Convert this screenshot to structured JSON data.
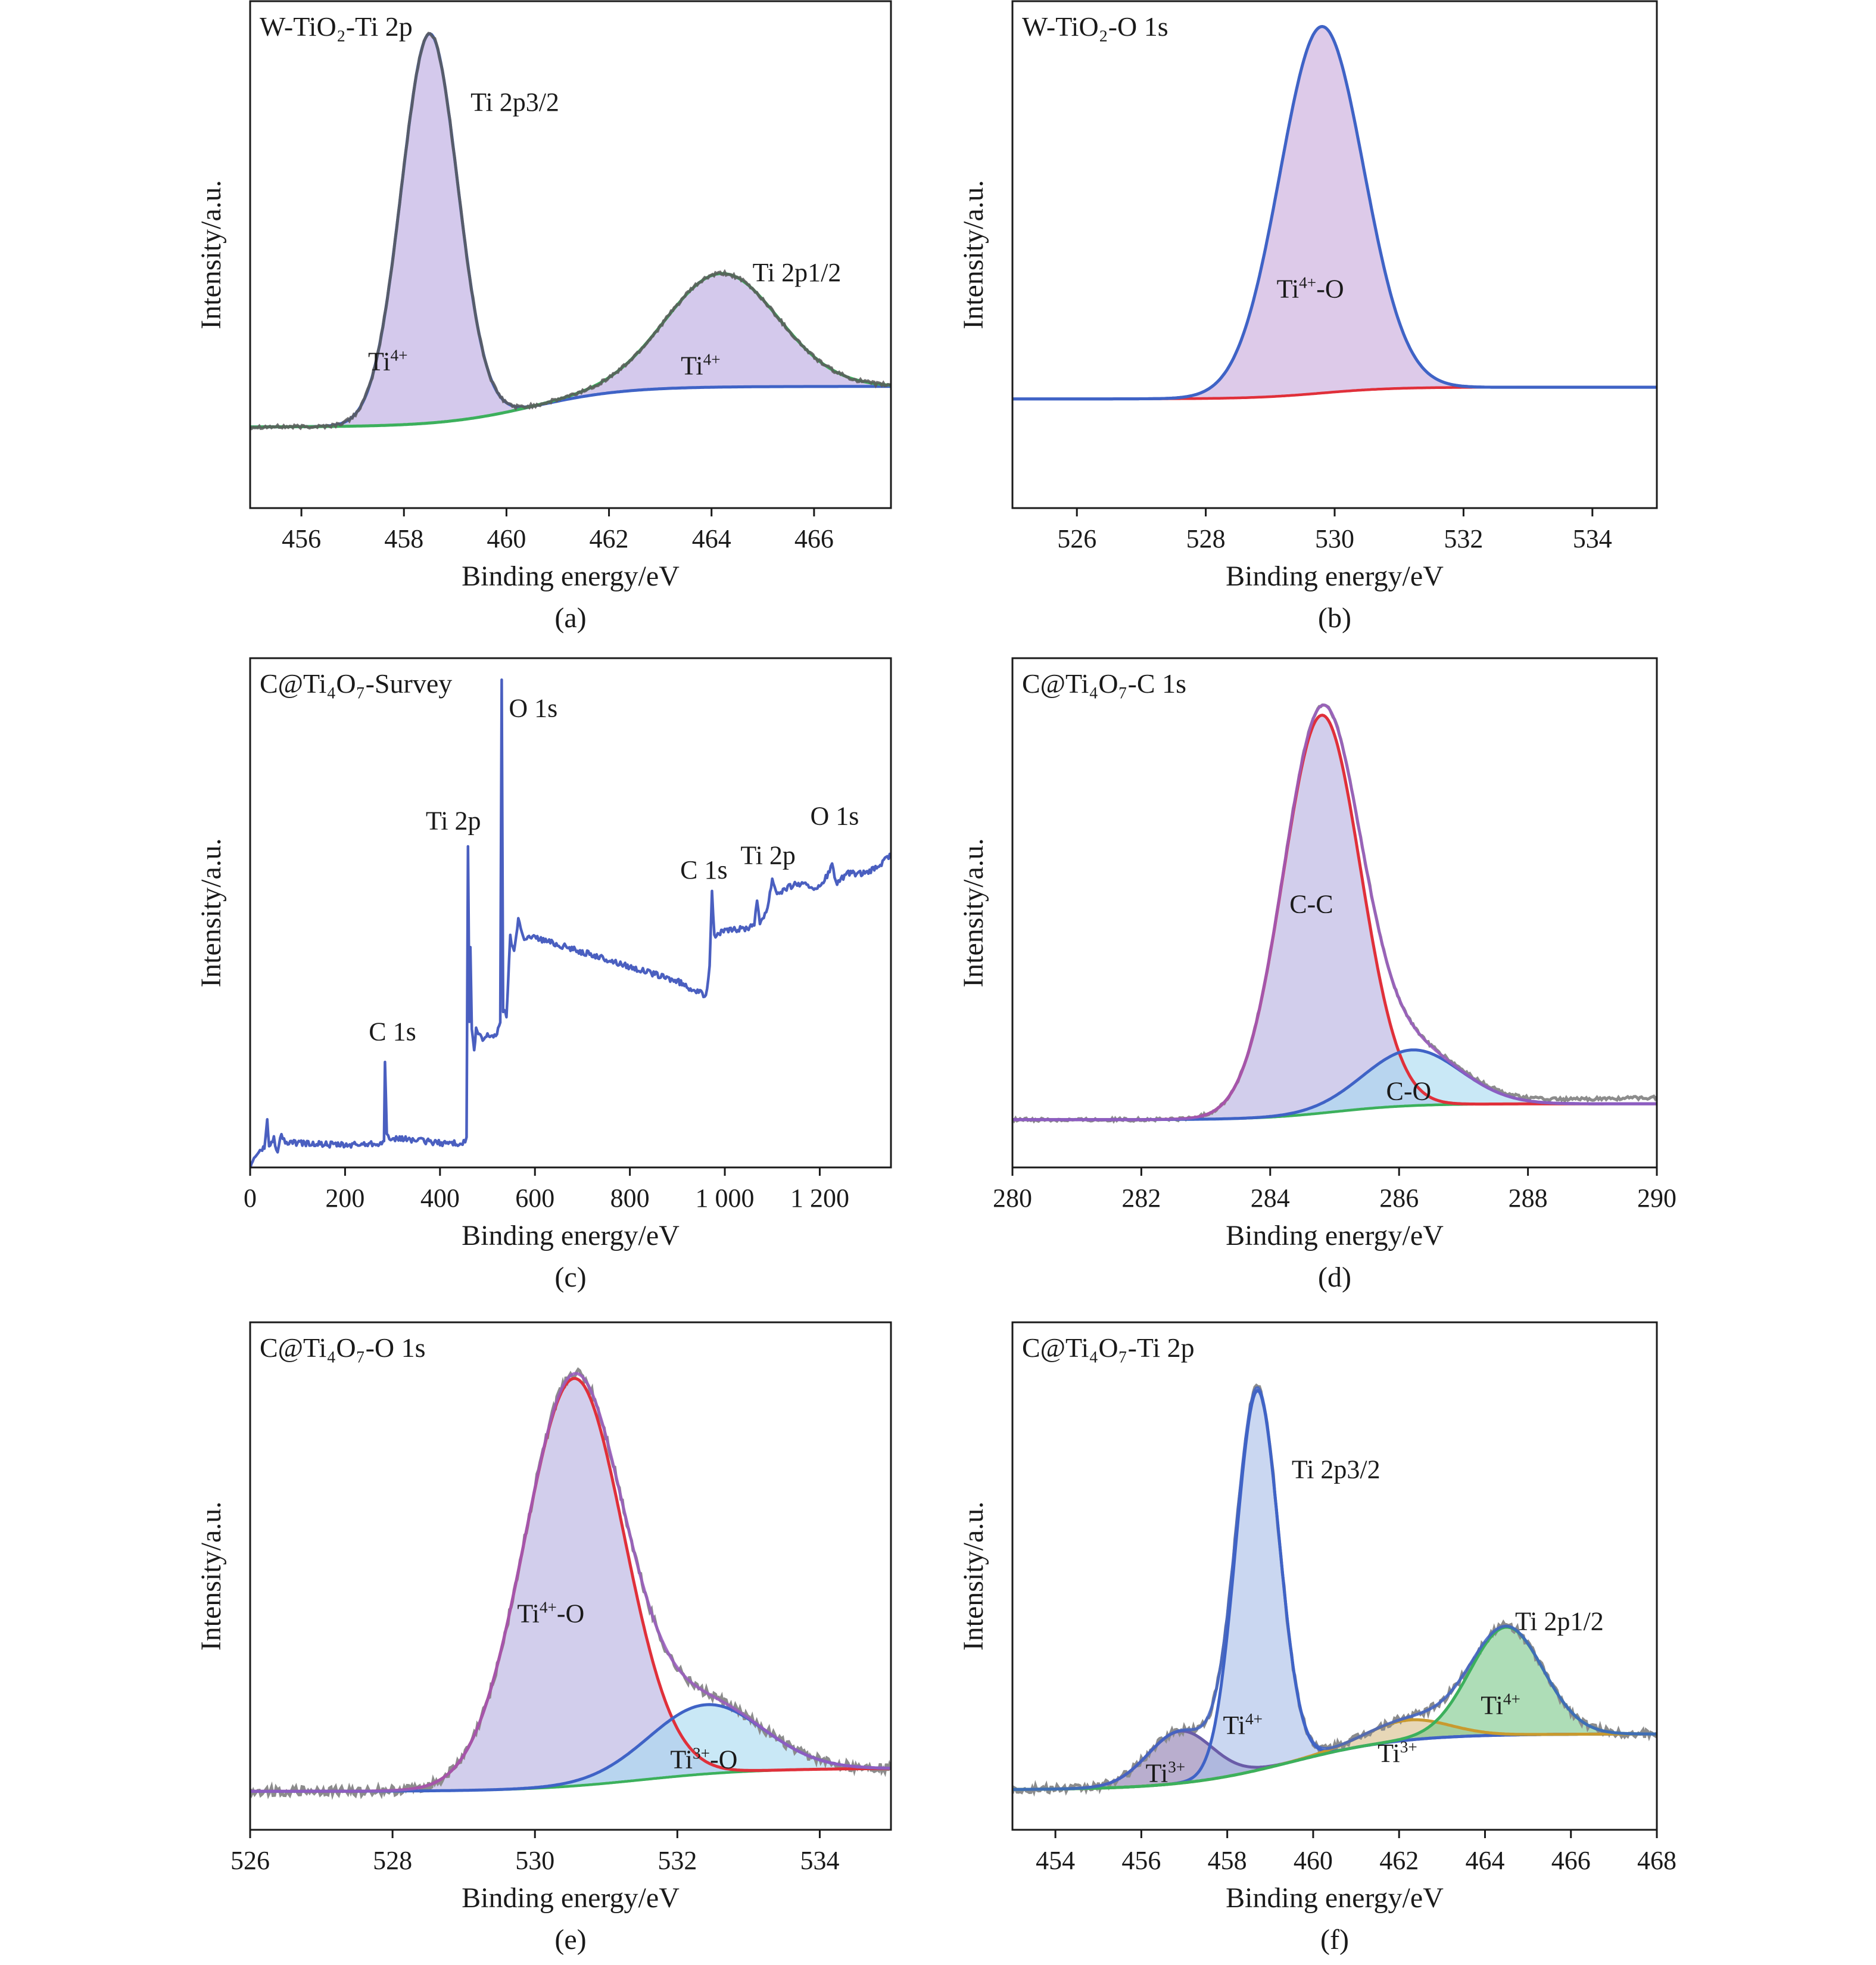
{
  "figure": {
    "background": "#ffffff"
  },
  "chart_data": [
    {
      "id": "a",
      "type": "line",
      "caption": "(a)",
      "title": "W-TiO₂-Ti 2p",
      "xlabel": "Binding energy/eV",
      "ylabel": "Intensity/a.u.",
      "xlim": [
        455,
        467.5
      ],
      "ylim": [
        -0.2,
        1.05
      ],
      "xticks": [
        456,
        458,
        460,
        462,
        464,
        466
      ],
      "baseline": {
        "color": "#9a5cbf",
        "y0": 0.0,
        "y1": 0.1,
        "center": 460.5,
        "width": 0.9
      },
      "components": [
        {
          "name": "Ti 2p3/2",
          "center": 458.5,
          "amplitude": 0.96,
          "sigma": 0.55,
          "color": "#3f63c6",
          "fill": "#b9a8e0"
        },
        {
          "name": "Ti 2p1/2",
          "center": 464.2,
          "amplitude": 0.28,
          "sigma": 1.1,
          "color": "#3cb05c",
          "fill": "#b9a8e0"
        }
      ],
      "envelope": {
        "color": "#5a5a5a",
        "noise": 0.004
      },
      "annotations": [
        {
          "text": "Ti 2p3/2",
          "x": 459.3,
          "y": 0.78
        },
        {
          "text": "Ti 2p1/2",
          "x": 464.8,
          "y": 0.36
        },
        {
          "text": "Ti",
          "sup": "4+",
          "x": 457.3,
          "y": 0.14
        },
        {
          "text": "Ti",
          "sup": "4+",
          "x": 463.4,
          "y": 0.13
        }
      ]
    },
    {
      "id": "b",
      "type": "line",
      "caption": "(b)",
      "title": "W-TiO₂-O 1s",
      "xlabel": "Binding energy/eV",
      "ylabel": "Intensity/a.u.",
      "xlim": [
        525,
        535
      ],
      "ylim": [
        -0.28,
        1.02
      ],
      "xticks": [
        526,
        528,
        530,
        532,
        534
      ],
      "baseline": {
        "color": "#e0303a",
        "y0": 0.0,
        "y1": 0.03,
        "center": 529.8,
        "width": 0.55
      },
      "components": [
        {
          "name": "Ti4+-O",
          "center": 529.8,
          "amplitude": 0.94,
          "sigma": 0.65,
          "color": "#3f63c6",
          "fill": "#c8a9dc"
        }
      ],
      "envelope": {
        "color": "#3f63c6",
        "noise": 0.0
      },
      "annotations": [
        {
          "text": "Ti",
          "sup": "4+",
          "tail": "-O",
          "x": 529.1,
          "y": 0.26
        }
      ]
    },
    {
      "id": "c",
      "type": "line",
      "caption": "(c)",
      "title": "C@Ti₄O₇-Survey",
      "xlabel": "Binding energy/eV",
      "ylabel": "Intensity/a.u.",
      "xlim": [
        0,
        1350
      ],
      "ylim": [
        0,
        1.04
      ],
      "xticks": [
        0,
        200,
        400,
        600,
        800,
        1000,
        1200
      ],
      "xticklabels": [
        "0",
        "200",
        "400",
        "600",
        "800",
        "1 000",
        "1 200"
      ],
      "series_color": "#4a5fc0",
      "points": [
        [
          0,
          0.0
        ],
        [
          8,
          0.02
        ],
        [
          16,
          0.03
        ],
        [
          30,
          0.04
        ],
        [
          36,
          0.1
        ],
        [
          40,
          0.04
        ],
        [
          50,
          0.06
        ],
        [
          58,
          0.03
        ],
        [
          66,
          0.07
        ],
        [
          74,
          0.05
        ],
        [
          100,
          0.05
        ],
        [
          200,
          0.045
        ],
        [
          270,
          0.05
        ],
        [
          282,
          0.05
        ],
        [
          284,
          0.22
        ],
        [
          288,
          0.07
        ],
        [
          296,
          0.05
        ],
        [
          310,
          0.06
        ],
        [
          400,
          0.05
        ],
        [
          450,
          0.05
        ],
        [
          456,
          0.06
        ],
        [
          459,
          0.66
        ],
        [
          462,
          0.3
        ],
        [
          464,
          0.45
        ],
        [
          467,
          0.28
        ],
        [
          472,
          0.24
        ],
        [
          476,
          0.28
        ],
        [
          490,
          0.26
        ],
        [
          500,
          0.27
        ],
        [
          520,
          0.27
        ],
        [
          527,
          0.3
        ],
        [
          530,
          1.0
        ],
        [
          533,
          0.32
        ],
        [
          540,
          0.31
        ],
        [
          548,
          0.47
        ],
        [
          556,
          0.44
        ],
        [
          565,
          0.51
        ],
        [
          575,
          0.47
        ],
        [
          600,
          0.47
        ],
        [
          700,
          0.44
        ],
        [
          800,
          0.41
        ],
        [
          900,
          0.38
        ],
        [
          960,
          0.35
        ],
        [
          968,
          0.41
        ],
        [
          973,
          0.57
        ],
        [
          978,
          0.47
        ],
        [
          990,
          0.48
        ],
        [
          1050,
          0.49
        ],
        [
          1062,
          0.5
        ],
        [
          1068,
          0.54
        ],
        [
          1074,
          0.5
        ],
        [
          1090,
          0.53
        ],
        [
          1100,
          0.59
        ],
        [
          1110,
          0.56
        ],
        [
          1150,
          0.58
        ],
        [
          1200,
          0.57
        ],
        [
          1218,
          0.6
        ],
        [
          1226,
          0.62
        ],
        [
          1234,
          0.58
        ],
        [
          1260,
          0.6
        ],
        [
          1300,
          0.6
        ],
        [
          1330,
          0.62
        ],
        [
          1350,
          0.64
        ]
      ],
      "annotations": [
        {
          "text": "C 1s",
          "x": 250,
          "y": 0.26
        },
        {
          "text": "Ti 2p",
          "x": 370,
          "y": 0.69
        },
        {
          "text": "O 1s",
          "x": 545,
          "y": 0.92
        },
        {
          "text": "C 1s",
          "x": 906,
          "y": 0.59
        },
        {
          "text": "Ti 2p",
          "x": 1033,
          "y": 0.62
        },
        {
          "text": "O 1s",
          "x": 1180,
          "y": 0.7
        }
      ]
    },
    {
      "id": "d",
      "type": "line",
      "caption": "(d)",
      "title": "C@Ti₄O₇-C 1s",
      "xlabel": "Binding energy/eV",
      "ylabel": "Intensity/a.u.",
      "xlim": [
        280,
        290
      ],
      "ylim": [
        -0.12,
        1.16
      ],
      "xticks": [
        280,
        282,
        284,
        286,
        288,
        290
      ],
      "baseline": {
        "color": "#3cb05c",
        "y0": 0.0,
        "y1": 0.04,
        "center": 285.0,
        "width": 0.6
      },
      "components": [
        {
          "name": "C-C",
          "center": 284.8,
          "amplitude": 1.0,
          "sigma": 0.6,
          "color": "#e0303a",
          "fill": "#b7b0e0"
        },
        {
          "name": "C-O",
          "center": 286.2,
          "amplitude": 0.14,
          "sigma": 0.75,
          "color": "#3f63c6",
          "fill": "#a8daf0"
        }
      ],
      "envelope": {
        "color": "#9a5cbf",
        "noise": 0.0
      },
      "rawdata": {
        "color": "#8c8c8c",
        "noise": 0.004,
        "tail": 0.04
      },
      "annotations": [
        {
          "text": "C-C",
          "x": 284.3,
          "y": 0.52
        },
        {
          "text": "C-O",
          "x": 285.8,
          "y": 0.05
        }
      ]
    },
    {
      "id": "e",
      "type": "line",
      "caption": "(e)",
      "title": "C@Ti₄O₇-O 1s",
      "xlabel": "Binding energy/eV",
      "ylabel": "Intensity/a.u.",
      "xlim": [
        526,
        535
      ],
      "ylim": [
        -0.1,
        1.22
      ],
      "xticks": [
        526,
        528,
        530,
        532,
        534
      ],
      "baseline": {
        "color": "#3cb05c",
        "y0": 0.0,
        "y1": 0.06,
        "center": 531.5,
        "width": 0.8
      },
      "components": [
        {
          "name": "Ti4+-O",
          "center": 530.55,
          "amplitude": 1.06,
          "sigma": 0.7,
          "color": "#e0303a",
          "fill": "#b7b0e0"
        },
        {
          "name": "Ti3+-O",
          "center": 532.4,
          "amplitude": 0.18,
          "sigma": 0.8,
          "color": "#3f63c6",
          "fill": "#a8daf0"
        }
      ],
      "envelope": {
        "color": "#9a5cbf",
        "noise": 0.0
      },
      "rawdata": {
        "color": "#8c8c8c",
        "noise": 0.012,
        "tail": 0.0
      },
      "annotations": [
        {
          "text": "Ti",
          "sup": "4+",
          "tail": "-O",
          "x": 529.75,
          "y": 0.44
        },
        {
          "text": "Ti",
          "sup": "3+",
          "tail": "-O",
          "x": 531.9,
          "y": 0.06
        }
      ]
    },
    {
      "id": "f",
      "type": "line",
      "caption": "(f)",
      "title": "C@Ti₄O₇-Ti 2p",
      "xlabel": "Binding energy/eV",
      "ylabel": "Intensity/a.u.",
      "xlim": [
        453,
        468
      ],
      "ylim": [
        -0.1,
        1.17
      ],
      "xticks": [
        454,
        456,
        458,
        460,
        462,
        464,
        466,
        468
      ],
      "baseline": {
        "color": "#4fb9b4",
        "y0": 0.0,
        "y1": 0.14,
        "center": 459.5,
        "width": 1.3
      },
      "components": [
        {
          "name": "Ti3+ (2p3/2)",
          "center": 456.9,
          "amplitude": 0.13,
          "sigma": 0.75,
          "color": "#6a5ca8",
          "fill": "#8e7cb0"
        },
        {
          "name": "Ti4+ (2p3/2)",
          "center": 458.7,
          "amplitude": 0.95,
          "sigma": 0.5,
          "color": "#3f63c6",
          "fill": "#a9bfe8"
        },
        {
          "name": "Ti3+ (2p1/2)",
          "center": 462.2,
          "amplitude": 0.05,
          "sigma": 0.95,
          "color": "#c99a2e",
          "fill": "#d8bf8a"
        },
        {
          "name": "Ti4+ (2p1/2)",
          "center": 464.5,
          "amplitude": 0.27,
          "sigma": 0.85,
          "color": "#3cb05c",
          "fill": "#7cc88a"
        }
      ],
      "envelope": {
        "color": "#3f63c6",
        "noise": 0.0
      },
      "rawdata": {
        "color": "#8c8c8c",
        "noise": 0.01,
        "tail": 0.0
      },
      "annotations": [
        {
          "text": "Ti 2p3/2",
          "x": 459.5,
          "y": 0.78
        },
        {
          "text": "Ti 2p1/2",
          "x": 464.7,
          "y": 0.4
        },
        {
          "text": "Ti",
          "sup": "4+",
          "x": 457.9,
          "y": 0.14
        },
        {
          "text": "Ti",
          "sup": "4+",
          "x": 463.9,
          "y": 0.19
        },
        {
          "text": "Ti",
          "sup": "3+",
          "x": 456.1,
          "y": 0.02
        },
        {
          "text": "Ti",
          "sup": "3+",
          "x": 461.5,
          "y": 0.07
        }
      ]
    }
  ]
}
